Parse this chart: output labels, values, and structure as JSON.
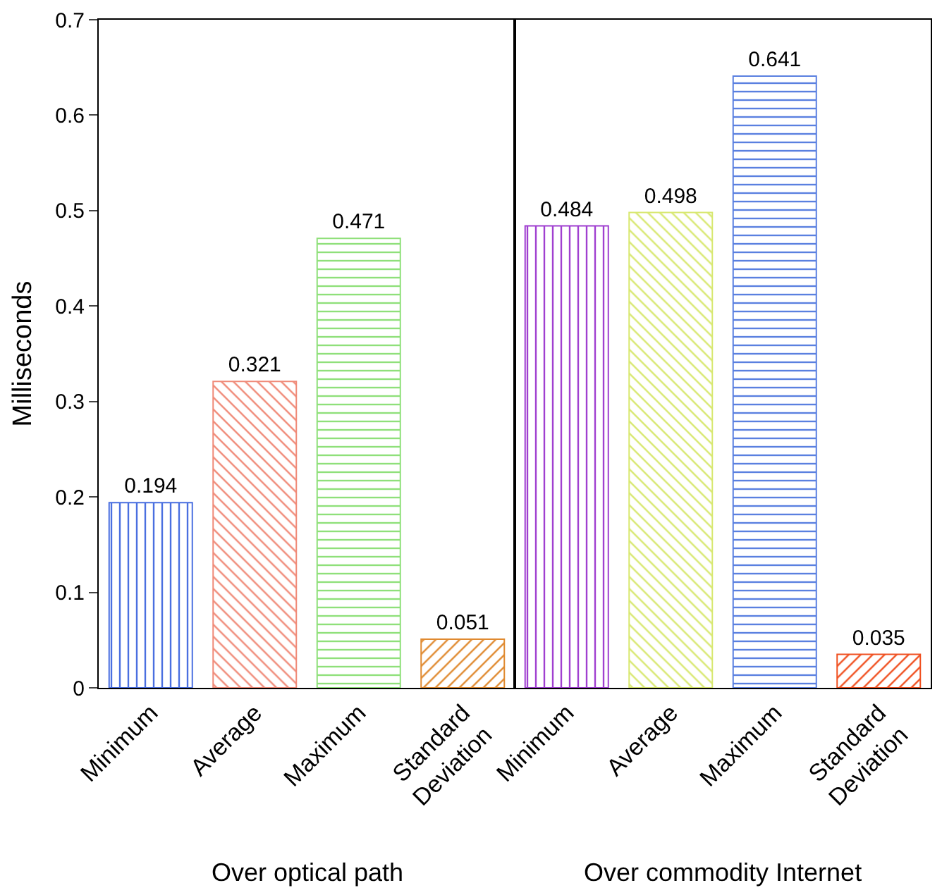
{
  "chart_data": [
    {
      "type": "bar",
      "ylabel": "Milliseconds",
      "xlabel": "Over optical path",
      "categories": [
        "Minimum",
        "Average",
        "Maximum",
        "Standard Deviation"
      ],
      "values": [
        0.194,
        0.321,
        0.471,
        0.051
      ],
      "colors": [
        "#4a6fe0",
        "#f08a78",
        "#8fe07a",
        "#e08a30"
      ],
      "data_labels": true,
      "ylim": [
        0,
        0.7
      ],
      "yticks": [
        0,
        0.1,
        0.2,
        0.3,
        0.4,
        0.5,
        0.6,
        0.7
      ],
      "grid": false
    },
    {
      "type": "bar",
      "xlabel": "Over commodity Internet",
      "categories": [
        "Minimum",
        "Average",
        "Maximum",
        "Standard Deviation"
      ],
      "values": [
        0.484,
        0.498,
        0.641,
        0.035
      ],
      "colors": [
        "#a040d0",
        "#d8e870",
        "#5a80e0",
        "#f05020"
      ],
      "data_labels": true,
      "ylim": [
        0,
        0.7
      ],
      "yticks": [
        0,
        0.1,
        0.2,
        0.3,
        0.4,
        0.5,
        0.6,
        0.7
      ],
      "grid": false,
      "tick_labels": "x"
    }
  ]
}
